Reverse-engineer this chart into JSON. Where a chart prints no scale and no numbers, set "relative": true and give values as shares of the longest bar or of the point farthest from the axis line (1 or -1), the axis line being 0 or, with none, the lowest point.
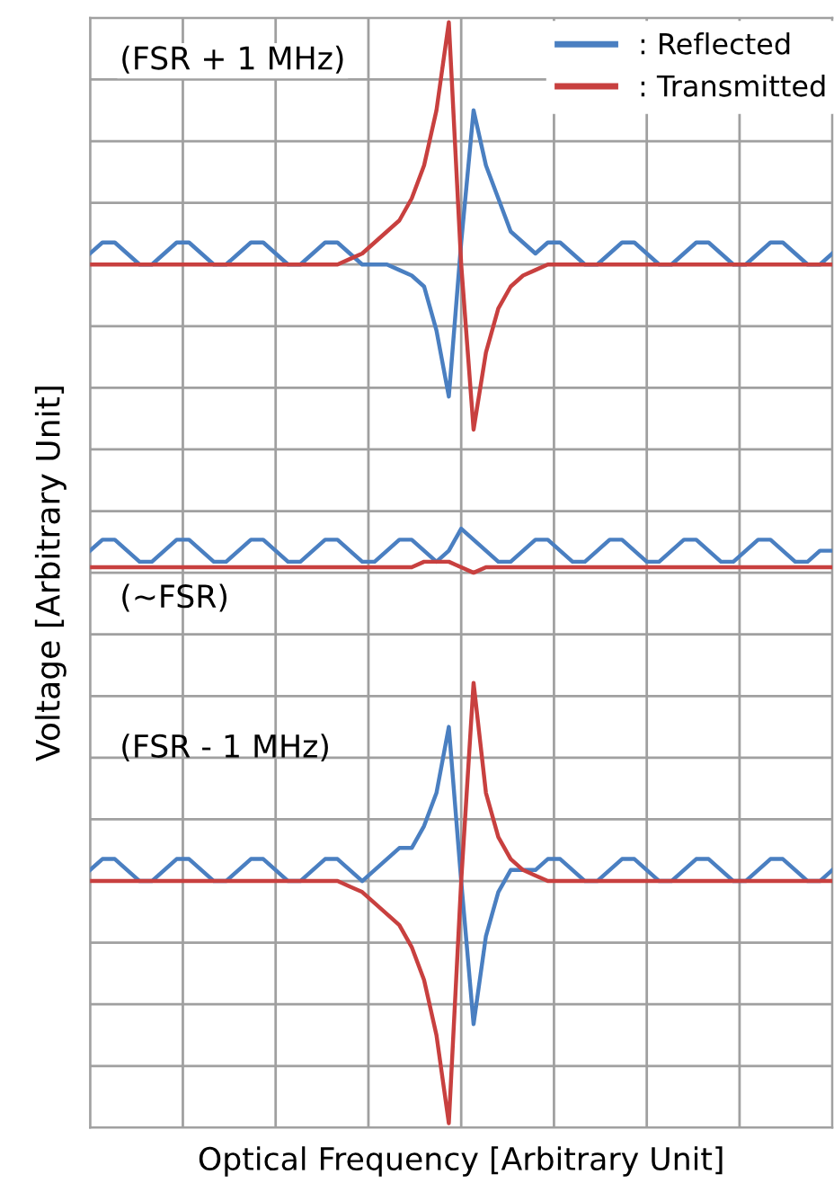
{
  "chart_data": {
    "type": "line",
    "relative": true,
    "xlabel": "Optical Frequency [Arbitrary Unit]",
    "ylabel": "Voltage [Arbitrary Unit]",
    "grid": true,
    "legend": "top right",
    "marker": "none",
    "line_style": "solid",
    "annotations": [
      "(FSR + 1 MHz)",
      "(~FSR)",
      "(FSR - 1 MHz)"
    ],
    "categories": [
      null,
      null,
      null,
      null,
      null,
      null,
      null,
      null,
      null,
      null,
      null,
      null,
      null,
      null,
      null,
      null,
      null,
      null,
      null,
      null,
      null,
      null,
      null,
      null,
      null,
      null,
      null,
      null,
      null,
      null,
      null,
      null,
      null,
      null,
      null,
      null,
      null,
      null,
      null,
      null,
      null,
      null,
      null,
      null,
      null,
      null,
      null,
      null,
      null,
      null,
      null,
      null,
      null,
      null,
      null,
      null,
      null,
      null,
      null,
      null,
      null
    ],
    "series": [
      {
        "name": ": Reflected",
        "color": "#4a7fc1",
        "values": [
          0.79,
          0.8,
          0.8,
          0.79,
          0.78,
          0.78,
          0.79,
          0.8,
          0.8,
          0.79,
          0.78,
          0.78,
          0.79,
          0.8,
          0.8,
          0.79,
          0.78,
          0.78,
          0.79,
          0.8,
          0.8,
          0.79,
          0.78,
          0.78,
          0.78,
          0.775,
          0.77,
          0.76,
          0.72,
          0.66,
          0.8,
          0.92,
          0.87,
          0.84,
          0.81,
          0.8,
          0.79,
          0.8,
          0.8,
          0.79,
          0.78,
          0.78,
          0.79,
          0.8,
          0.8,
          0.79,
          0.78,
          0.78,
          0.79,
          0.8,
          0.8,
          0.79,
          0.78,
          0.78,
          0.79,
          0.8,
          0.8,
          0.79,
          0.78,
          0.78,
          0.79
        ]
      },
      {
        "name": ": Transmitted",
        "color": "#c8403f",
        "values": [
          0.78,
          0.78,
          0.78,
          0.78,
          0.78,
          0.78,
          0.78,
          0.78,
          0.78,
          0.78,
          0.78,
          0.78,
          0.78,
          0.78,
          0.78,
          0.78,
          0.78,
          0.78,
          0.78,
          0.78,
          0.78,
          0.785,
          0.79,
          0.8,
          0.81,
          0.82,
          0.84,
          0.87,
          0.92,
          1.0,
          0.78,
          0.63,
          0.7,
          0.74,
          0.76,
          0.77,
          0.775,
          0.78,
          0.78,
          0.78,
          0.78,
          0.78,
          0.78,
          0.78,
          0.78,
          0.78,
          0.78,
          0.78,
          0.78,
          0.78,
          0.78,
          0.78,
          0.78,
          0.78,
          0.78,
          0.78,
          0.78,
          0.78,
          0.78,
          0.78,
          0.78
        ]
      },
      {
        "color": "#4a7fc1",
        "values": [
          0.52,
          0.53,
          0.53,
          0.52,
          0.51,
          0.51,
          0.52,
          0.53,
          0.53,
          0.52,
          0.51,
          0.51,
          0.52,
          0.53,
          0.53,
          0.52,
          0.51,
          0.51,
          0.52,
          0.53,
          0.53,
          0.52,
          0.51,
          0.51,
          0.52,
          0.53,
          0.53,
          0.52,
          0.51,
          0.52,
          0.54,
          0.53,
          0.52,
          0.51,
          0.51,
          0.52,
          0.53,
          0.53,
          0.52,
          0.51,
          0.51,
          0.52,
          0.53,
          0.53,
          0.52,
          0.51,
          0.51,
          0.52,
          0.53,
          0.53,
          0.52,
          0.51,
          0.51,
          0.52,
          0.53,
          0.53,
          0.52,
          0.51,
          0.51,
          0.52,
          0.52
        ]
      },
      {
        "color": "#c8403f",
        "values": [
          0.505,
          0.505,
          0.505,
          0.505,
          0.505,
          0.505,
          0.505,
          0.505,
          0.505,
          0.505,
          0.505,
          0.505,
          0.505,
          0.505,
          0.505,
          0.505,
          0.505,
          0.505,
          0.505,
          0.505,
          0.505,
          0.505,
          0.505,
          0.505,
          0.505,
          0.505,
          0.505,
          0.51,
          0.51,
          0.51,
          0.505,
          0.5,
          0.505,
          0.505,
          0.505,
          0.505,
          0.505,
          0.505,
          0.505,
          0.505,
          0.505,
          0.505,
          0.505,
          0.505,
          0.505,
          0.505,
          0.505,
          0.505,
          0.505,
          0.505,
          0.505,
          0.505,
          0.505,
          0.505,
          0.505,
          0.505,
          0.505,
          0.505,
          0.505,
          0.505,
          0.505
        ]
      },
      {
        "color": "#4a7fc1",
        "values": [
          0.23,
          0.24,
          0.24,
          0.23,
          0.22,
          0.22,
          0.23,
          0.24,
          0.24,
          0.23,
          0.22,
          0.22,
          0.23,
          0.24,
          0.24,
          0.23,
          0.22,
          0.22,
          0.23,
          0.24,
          0.24,
          0.23,
          0.22,
          0.23,
          0.24,
          0.25,
          0.25,
          0.27,
          0.3,
          0.36,
          0.22,
          0.09,
          0.17,
          0.21,
          0.23,
          0.23,
          0.23,
          0.24,
          0.24,
          0.23,
          0.22,
          0.22,
          0.23,
          0.24,
          0.24,
          0.23,
          0.22,
          0.22,
          0.23,
          0.24,
          0.24,
          0.23,
          0.22,
          0.22,
          0.23,
          0.24,
          0.24,
          0.23,
          0.22,
          0.22,
          0.23
        ]
      },
      {
        "color": "#c8403f",
        "values": [
          0.22,
          0.22,
          0.22,
          0.22,
          0.22,
          0.22,
          0.22,
          0.22,
          0.22,
          0.22,
          0.22,
          0.22,
          0.22,
          0.22,
          0.22,
          0.22,
          0.22,
          0.22,
          0.22,
          0.22,
          0.22,
          0.215,
          0.21,
          0.2,
          0.19,
          0.18,
          0.16,
          0.13,
          0.08,
          0.0,
          0.22,
          0.4,
          0.3,
          0.26,
          0.24,
          0.23,
          0.225,
          0.22,
          0.22,
          0.22,
          0.22,
          0.22,
          0.22,
          0.22,
          0.22,
          0.22,
          0.22,
          0.22,
          0.22,
          0.22,
          0.22,
          0.22,
          0.22,
          0.22,
          0.22,
          0.22,
          0.22,
          0.22,
          0.22,
          0.22,
          0.22
        ]
      }
    ]
  }
}
